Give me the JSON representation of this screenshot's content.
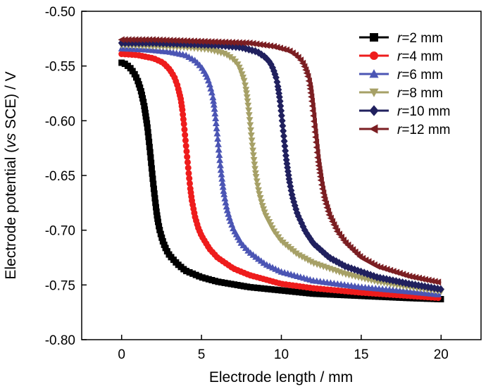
{
  "chart_data": {
    "type": "line",
    "xlabel": "Electrode length / mm",
    "ylabel_prefix": "Electrode potential (",
    "ylabel_italic": "vs",
    "ylabel_suffix": " SCE) / V",
    "xlim": [
      -2.5,
      22.5
    ],
    "ylim": [
      -0.8,
      -0.5
    ],
    "xticks": [
      0,
      5,
      10,
      15,
      20
    ],
    "xtick_labels": [
      "0",
      "5",
      "10",
      "15",
      "20"
    ],
    "yticks": [
      -0.5,
      -0.55,
      -0.6,
      -0.65,
      -0.7,
      -0.75,
      -0.8
    ],
    "ytick_labels": [
      "-0.50",
      "-0.55",
      "-0.60",
      "-0.65",
      "-0.70",
      "-0.75",
      "-0.80"
    ],
    "legend_position": "top-right",
    "series": [
      {
        "name_prefix": "r",
        "name_suffix": "=2 mm",
        "color": "#000000",
        "marker": "square",
        "x": [
          0,
          0.2,
          0.5,
          0.8,
          1.0,
          1.2,
          1.4,
          1.6,
          1.7,
          1.8,
          1.9,
          2.0,
          2.1,
          2.2,
          2.3,
          2.4,
          2.6,
          2.8,
          3.0,
          3.5,
          4.0,
          5.0,
          6.0,
          8.0,
          10.0,
          12.0,
          15.0,
          18.0,
          20.0
        ],
        "y": [
          -0.547,
          -0.548,
          -0.551,
          -0.557,
          -0.563,
          -0.572,
          -0.585,
          -0.604,
          -0.617,
          -0.631,
          -0.646,
          -0.66,
          -0.673,
          -0.685,
          -0.694,
          -0.701,
          -0.711,
          -0.718,
          -0.723,
          -0.731,
          -0.737,
          -0.743,
          -0.747,
          -0.752,
          -0.755,
          -0.758,
          -0.76,
          -0.762,
          -0.763
        ]
      },
      {
        "name_prefix": "r",
        "name_suffix": "=4 mm",
        "color": "#ee1c1c",
        "marker": "circle",
        "x": [
          0,
          1.0,
          2.0,
          2.6,
          3.0,
          3.3,
          3.5,
          3.7,
          3.8,
          3.9,
          4.0,
          4.1,
          4.2,
          4.3,
          4.4,
          4.6,
          4.8,
          5.0,
          5.5,
          6.0,
          7.0,
          8.0,
          10.0,
          12.0,
          15.0,
          18.0,
          20.0
        ],
        "y": [
          -0.539,
          -0.54,
          -0.543,
          -0.547,
          -0.553,
          -0.56,
          -0.568,
          -0.58,
          -0.59,
          -0.603,
          -0.618,
          -0.633,
          -0.648,
          -0.662,
          -0.673,
          -0.688,
          -0.698,
          -0.705,
          -0.717,
          -0.725,
          -0.735,
          -0.741,
          -0.749,
          -0.753,
          -0.757,
          -0.76,
          -0.762
        ]
      },
      {
        "name_prefix": "r",
        "name_suffix": "=6 mm",
        "color": "#4b55b4",
        "marker": "triangle-up",
        "x": [
          0,
          1.5,
          3.0,
          4.0,
          4.6,
          5.0,
          5.3,
          5.5,
          5.7,
          5.8,
          5.9,
          6.0,
          6.1,
          6.2,
          6.3,
          6.4,
          6.6,
          6.8,
          7.0,
          7.5,
          8.0,
          9.0,
          10.0,
          12.0,
          15.0,
          18.0,
          20.0
        ],
        "y": [
          -0.534,
          -0.535,
          -0.537,
          -0.54,
          -0.545,
          -0.551,
          -0.558,
          -0.566,
          -0.577,
          -0.587,
          -0.6,
          -0.614,
          -0.629,
          -0.643,
          -0.655,
          -0.666,
          -0.681,
          -0.691,
          -0.699,
          -0.712,
          -0.72,
          -0.731,
          -0.738,
          -0.746,
          -0.752,
          -0.756,
          -0.759
        ]
      },
      {
        "name_prefix": "r",
        "name_suffix": "=8 mm",
        "color": "#a6a066",
        "marker": "triangle-down",
        "x": [
          0,
          2.0,
          4.0,
          5.5,
          6.5,
          7.0,
          7.3,
          7.5,
          7.7,
          7.8,
          7.9,
          8.0,
          8.1,
          8.2,
          8.3,
          8.4,
          8.6,
          8.8,
          9.0,
          9.5,
          10.0,
          11.0,
          12.0,
          14.0,
          16.0,
          18.0,
          20.0
        ],
        "y": [
          -0.531,
          -0.532,
          -0.533,
          -0.535,
          -0.539,
          -0.544,
          -0.549,
          -0.556,
          -0.565,
          -0.573,
          -0.584,
          -0.597,
          -0.611,
          -0.625,
          -0.638,
          -0.65,
          -0.666,
          -0.677,
          -0.686,
          -0.7,
          -0.71,
          -0.722,
          -0.73,
          -0.74,
          -0.747,
          -0.752,
          -0.756
        ]
      },
      {
        "name_prefix": "r",
        "name_suffix": "=10 mm",
        "color": "#20205e",
        "marker": "diamond",
        "x": [
          0,
          2.0,
          4.0,
          6.0,
          7.5,
          8.5,
          9.0,
          9.3,
          9.5,
          9.7,
          9.8,
          9.9,
          10.0,
          10.1,
          10.2,
          10.3,
          10.5,
          10.7,
          11.0,
          11.5,
          12.0,
          13.0,
          14.0,
          16.0,
          18.0,
          20.0
        ],
        "y": [
          -0.529,
          -0.529,
          -0.53,
          -0.531,
          -0.533,
          -0.537,
          -0.542,
          -0.547,
          -0.553,
          -0.562,
          -0.57,
          -0.58,
          -0.593,
          -0.607,
          -0.621,
          -0.634,
          -0.655,
          -0.67,
          -0.685,
          -0.701,
          -0.712,
          -0.725,
          -0.733,
          -0.743,
          -0.749,
          -0.754
        ]
      },
      {
        "name_prefix": "r",
        "name_suffix": "=12 mm",
        "color": "#7b1e22",
        "marker": "triangle-left",
        "x": [
          0,
          2.0,
          4.0,
          6.0,
          8.0,
          9.5,
          10.5,
          11.0,
          11.3,
          11.5,
          11.7,
          11.8,
          11.9,
          12.0,
          12.1,
          12.2,
          12.3,
          12.5,
          12.7,
          13.0,
          13.5,
          14.0,
          15.0,
          16.0,
          18.0,
          20.0
        ],
        "y": [
          -0.526,
          -0.526,
          -0.527,
          -0.528,
          -0.529,
          -0.532,
          -0.536,
          -0.541,
          -0.546,
          -0.552,
          -0.561,
          -0.569,
          -0.58,
          -0.593,
          -0.608,
          -0.622,
          -0.636,
          -0.656,
          -0.671,
          -0.686,
          -0.701,
          -0.711,
          -0.725,
          -0.733,
          -0.742,
          -0.748
        ]
      }
    ]
  }
}
